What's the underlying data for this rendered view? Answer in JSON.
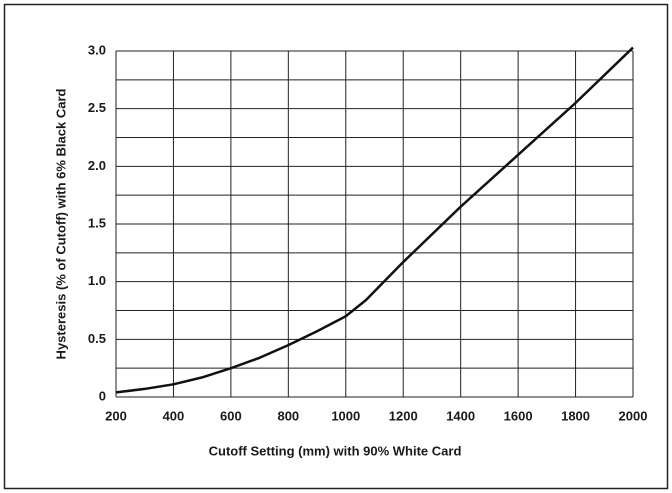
{
  "chart_data": {
    "type": "line",
    "x_label": "Cutoff Setting (mm) with 90% White Card",
    "y_label": "Hysteresis (% of Cutoff) with 6% Black Card",
    "x": [
      200,
      300,
      400,
      500,
      600,
      700,
      800,
      900,
      1000,
      1070,
      1200,
      1400,
      1600,
      1800,
      2000
    ],
    "series": [
      {
        "color": "#111111",
        "values": [
          0.04,
          0.07,
          0.11,
          0.17,
          0.25,
          0.34,
          0.45,
          0.57,
          0.7,
          0.84,
          1.17,
          1.65,
          2.1,
          2.55,
          3.03
        ]
      }
    ],
    "xlim": [
      200,
      2000
    ],
    "xticks": [
      200,
      400,
      600,
      800,
      1000,
      1200,
      1400,
      1600,
      1800,
      2000
    ],
    "ylim": [
      0,
      3
    ],
    "yticks": [
      0,
      0.5,
      {
        "value": 1,
        "label": "1.0"
      },
      1.5,
      {
        "value": 2,
        "label": "2.0"
      },
      2.5,
      {
        "value": 3,
        "label": "3.0"
      }
    ],
    "yminor": [
      0.25,
      0.75,
      1.25,
      1.75,
      2.25,
      2.75
    ],
    "grid": true
  }
}
